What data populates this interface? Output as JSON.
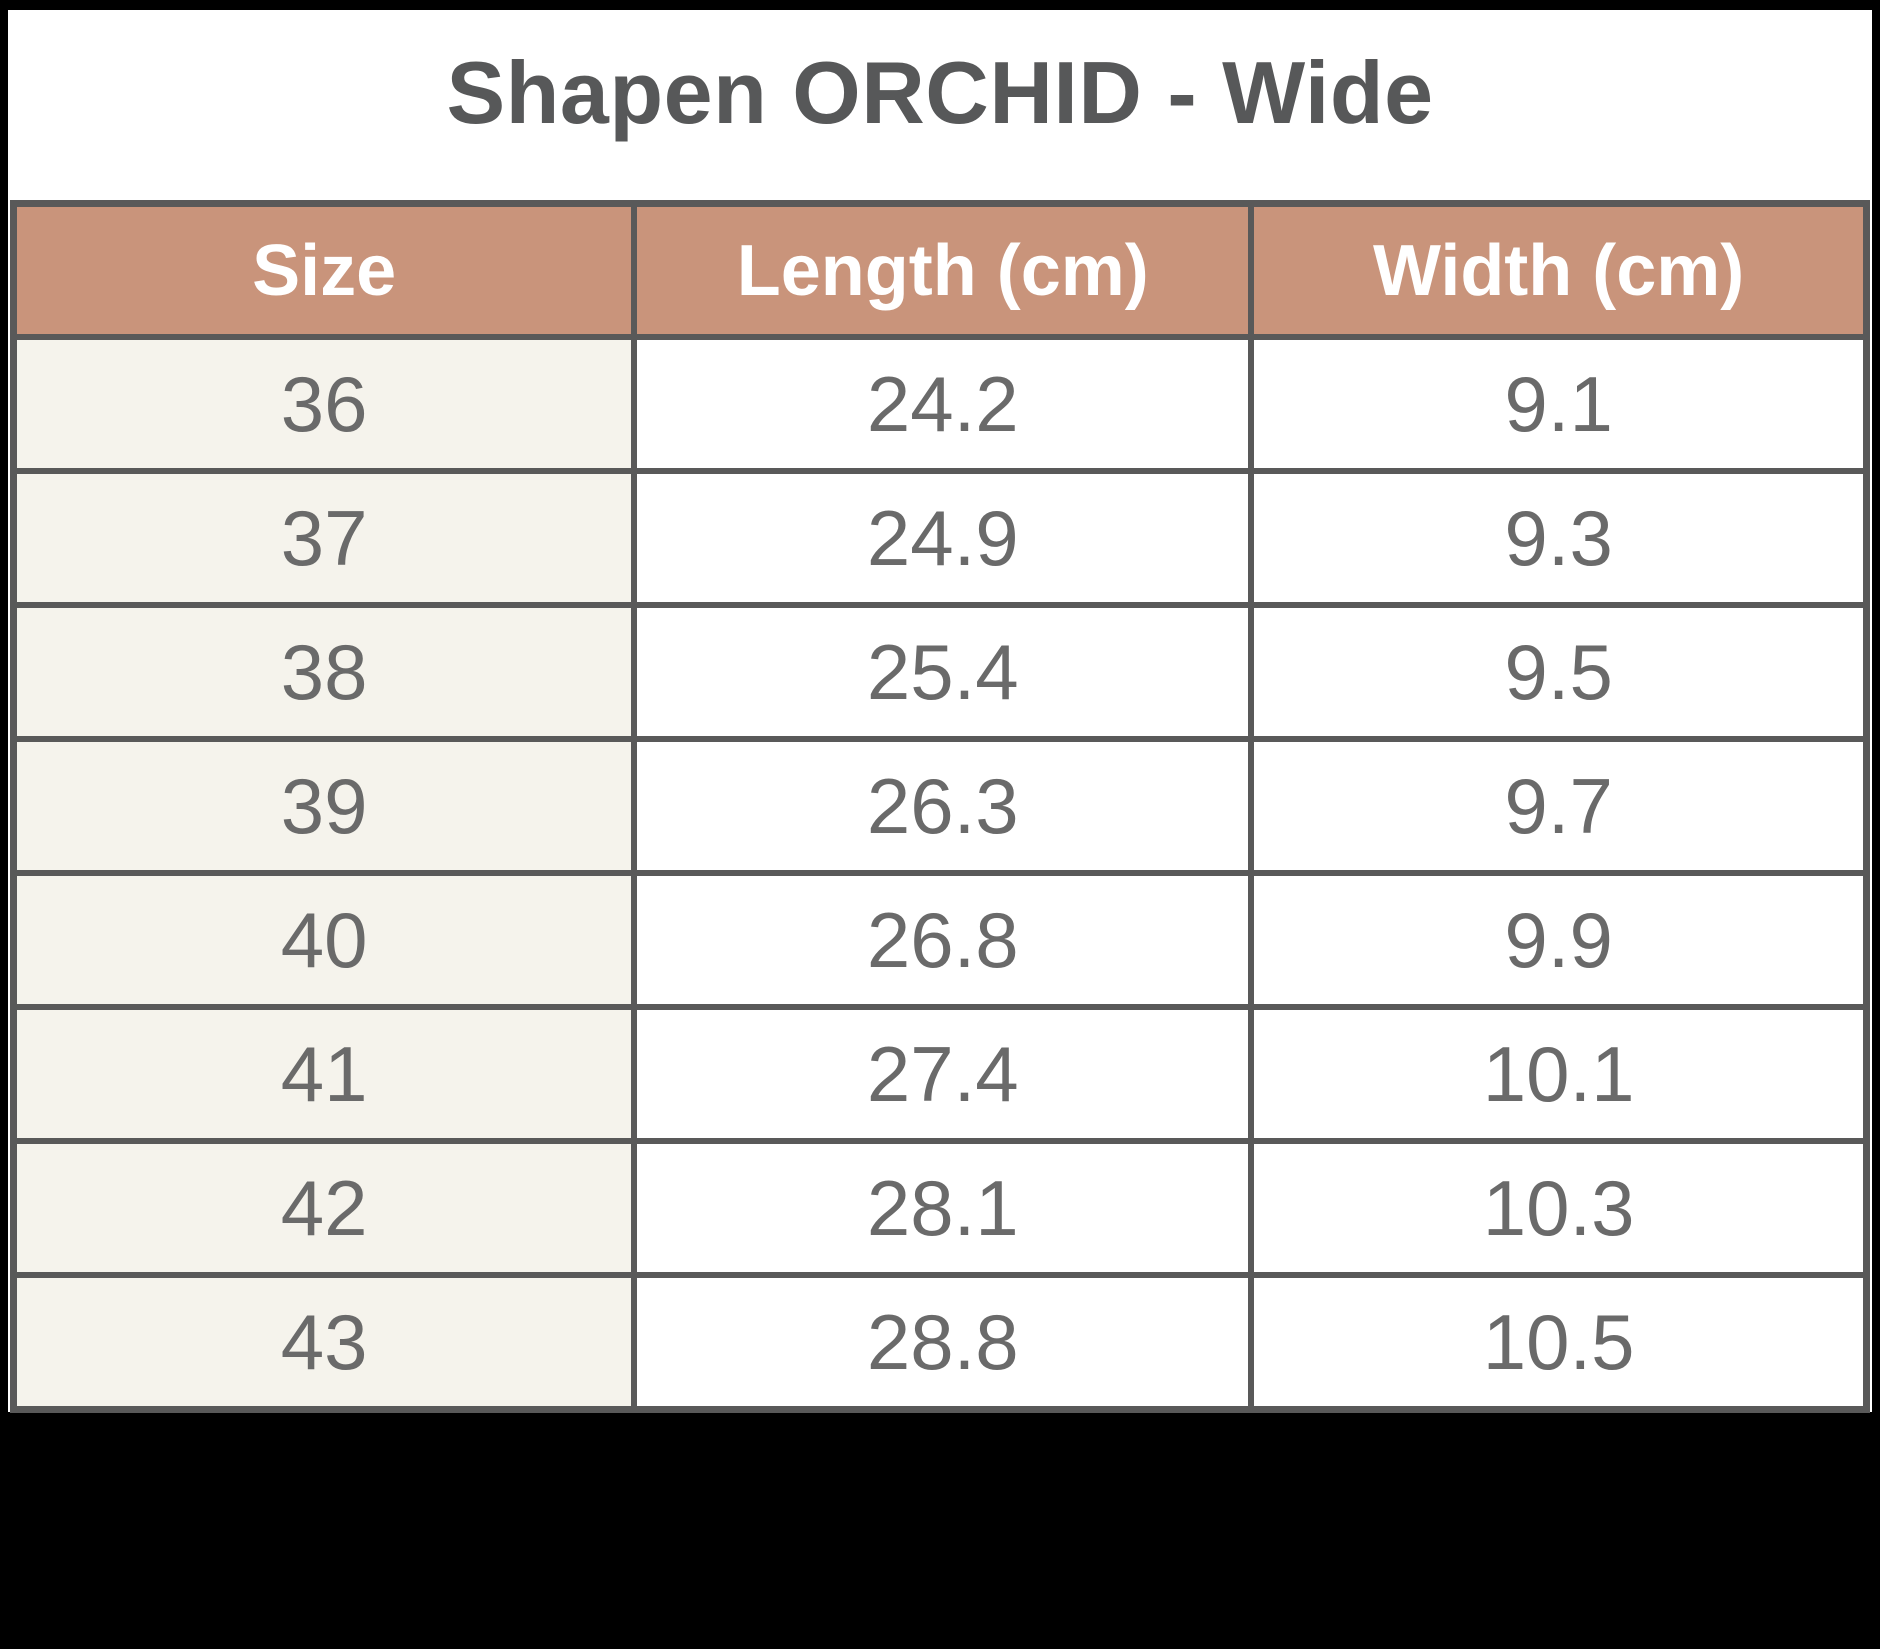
{
  "chart_data": {
    "type": "table",
    "title": "Shapen ORCHID - Wide",
    "columns": [
      "Size",
      "Length (cm)",
      "Width (cm)"
    ],
    "rows": [
      [
        "36",
        "24.2",
        "9.1"
      ],
      [
        "37",
        "24.9",
        "9.3"
      ],
      [
        "38",
        "25.4",
        "9.5"
      ],
      [
        "39",
        "26.3",
        "9.7"
      ],
      [
        "40",
        "26.8",
        "9.9"
      ],
      [
        "41",
        "27.4",
        "10.1"
      ],
      [
        "42",
        "28.1",
        "10.3"
      ],
      [
        "43",
        "28.8",
        "10.5"
      ]
    ],
    "xlabel": "",
    "ylabel": "",
    "legend": "none",
    "grid": "full cell borders"
  },
  "colors": {
    "page_bg": "#000000",
    "content_bg": "#ffffff",
    "title_text": "#575859",
    "header_bg": "#c9947b",
    "header_text": "#ffffff",
    "border": "#595959",
    "body_text": "#6a6a6a",
    "size_col_bg": "#f5f3ec"
  }
}
